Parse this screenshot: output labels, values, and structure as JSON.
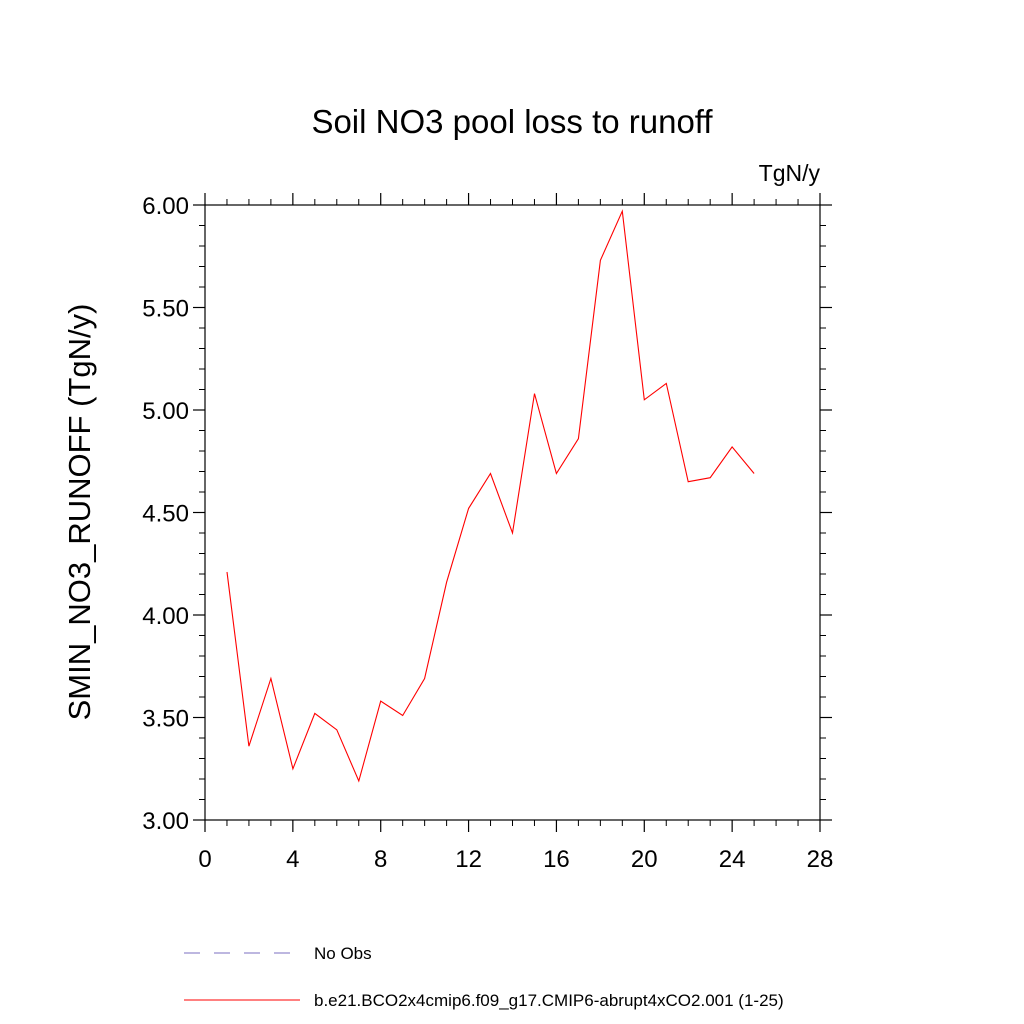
{
  "chart_data": {
    "type": "line",
    "title": "Soil NO3 pool loss to runoff",
    "units_label": "TgN/y",
    "ylabel": "SMIN_NO3_RUNOFF  (TgN/y)",
    "xlabel": "",
    "xlim": [
      0,
      28
    ],
    "ylim": [
      3.0,
      6.0
    ],
    "x_ticks": [
      0,
      4,
      8,
      12,
      16,
      20,
      24,
      28
    ],
    "x_tick_labels": [
      "0",
      "4",
      "8",
      "12",
      "16",
      "20",
      "24",
      "28"
    ],
    "y_ticks": [
      3.0,
      3.5,
      4.0,
      4.5,
      5.0,
      5.5,
      6.0
    ],
    "y_tick_labels": [
      "3.00",
      "3.50",
      "4.00",
      "4.50",
      "5.00",
      "5.50",
      "6.00"
    ],
    "grid": false,
    "legend_position": "bottom",
    "series": [
      {
        "name": "b.e21.BCO2x4cmip6.f09_g17.CMIP6-abrupt4xCO2.001 (1-25)",
        "color": "#ff0000",
        "style": "solid",
        "x": [
          1,
          2,
          3,
          4,
          5,
          6,
          7,
          8,
          9,
          10,
          11,
          12,
          13,
          14,
          15,
          16,
          17,
          18,
          19,
          20,
          21,
          22,
          23,
          24,
          25
        ],
        "y": [
          4.21,
          3.36,
          3.69,
          3.25,
          3.52,
          3.44,
          3.19,
          3.58,
          3.51,
          3.69,
          4.16,
          4.52,
          4.69,
          4.4,
          5.08,
          4.69,
          4.86,
          5.73,
          5.97,
          5.05,
          5.13,
          4.65,
          4.67,
          4.82,
          4.69
        ]
      },
      {
        "name": "No Obs",
        "color": "#7b6fc0",
        "style": "dashed",
        "x": [],
        "y": []
      }
    ]
  }
}
